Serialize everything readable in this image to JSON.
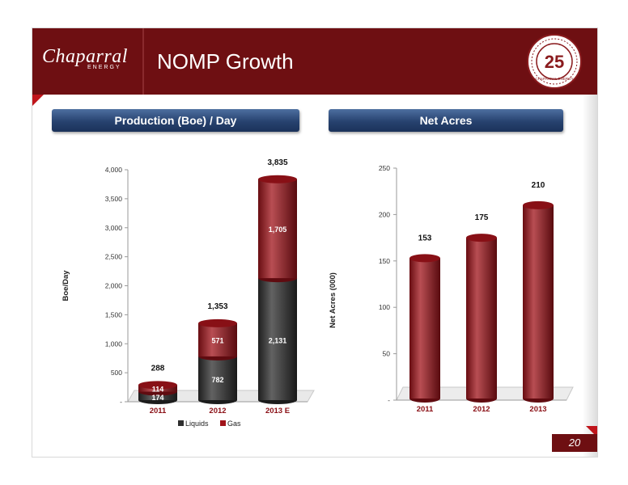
{
  "header": {
    "title": "NOMP Growth",
    "logo_text": "Chaparral",
    "logo_sub": "ENERGY",
    "seal_number": "25",
    "seal_text": "CHAPARRAL ENERGY",
    "color": "#6e0f12"
  },
  "panels": {
    "left_title": "Production (Boe) / Day",
    "right_title": "Net Acres"
  },
  "footer": {
    "page_number": "20"
  },
  "colors": {
    "liquids": "#2e2e2e",
    "gas": "#a0131a",
    "banner": "#2b4673"
  },
  "chart_data": [
    {
      "type": "bar",
      "stacked": true,
      "categories": [
        "2011",
        "2012",
        "2013 E"
      ],
      "series": [
        {
          "name": "Liquids",
          "values": [
            174,
            782,
            2131
          ]
        },
        {
          "name": "Gas",
          "values": [
            114,
            571,
            1705
          ]
        }
      ],
      "totals": [
        288,
        1353,
        3835
      ],
      "ylabel": "Boe/Day",
      "ylim": [
        0,
        4000
      ],
      "yticks": [
        0,
        500,
        1000,
        1500,
        2000,
        2500,
        3000,
        3500,
        4000
      ],
      "ytick_labels": [
        "-",
        "500",
        "1,000",
        "1,500",
        "2,000",
        "2,500",
        "3,000",
        "3,500",
        "4,000"
      ],
      "legend": "bottom"
    },
    {
      "type": "bar",
      "categories": [
        "2011",
        "2012",
        "2013"
      ],
      "values": [
        153,
        175,
        210
      ],
      "ylabel": "Net Acres (000)",
      "ylim": [
        0,
        250
      ],
      "yticks": [
        0,
        50,
        100,
        150,
        200,
        250
      ],
      "ytick_labels": [
        "-",
        "50",
        "100",
        "150",
        "200",
        "250"
      ]
    }
  ]
}
